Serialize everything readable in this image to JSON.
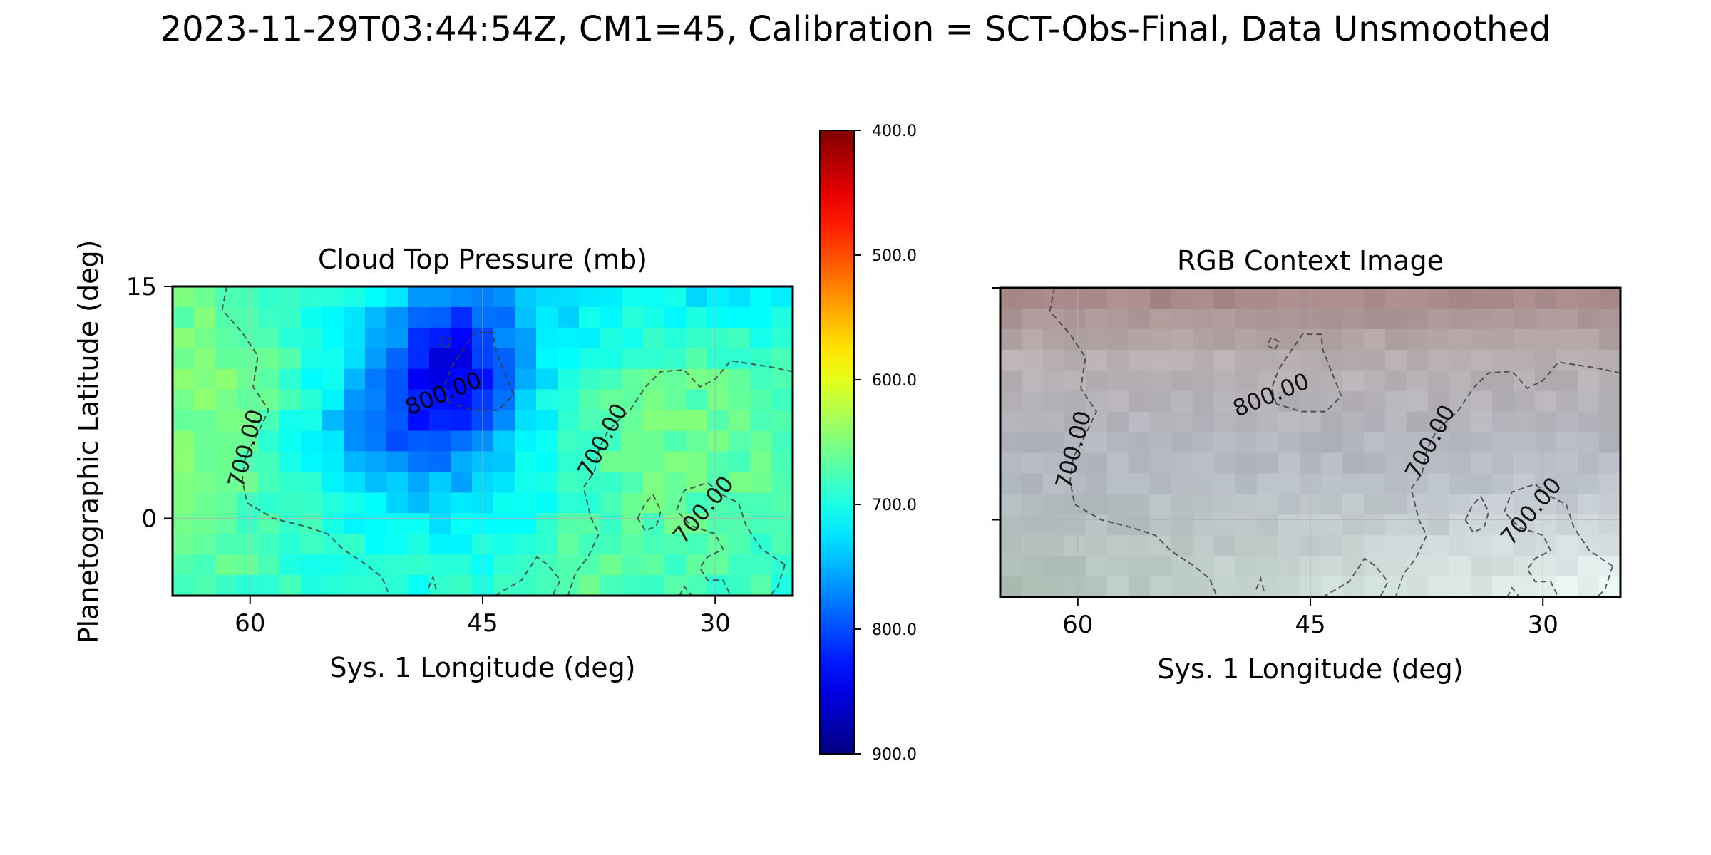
{
  "figure": {
    "suptitle": "2023-11-29T03:44:54Z, CM1=45, Calibration = SCT-Obs-Final, Data Unsmoothed"
  },
  "chart_data": [
    {
      "type": "heatmap",
      "title": "Cloud Top Pressure (mb)",
      "xlabel": "Sys. 1 Longitude (deg)",
      "ylabel": "Planetographic Latitude (deg)",
      "xlim": [
        65,
        25
      ],
      "ylim": [
        -5,
        15
      ],
      "x_ticks": [
        60,
        45,
        30
      ],
      "x_tick_labels": [
        "60",
        "45",
        "30"
      ],
      "y_ticks": [
        0,
        15
      ],
      "y_tick_labels": [
        "0",
        "15"
      ],
      "grid": true,
      "colormap": "jet_r",
      "value_range": [
        400,
        900
      ],
      "contour_levels": [
        700,
        800
      ],
      "contour_labels": [
        {
          "text": "700.00",
          "lon": 60.2,
          "lat": 4.5,
          "angle": -75
        },
        {
          "text": "800.00",
          "lon": 47.5,
          "lat": 8.0,
          "angle": -22
        },
        {
          "text": "700.00",
          "lon": 37.2,
          "lat": 5.0,
          "angle": -62
        },
        {
          "text": "700.00",
          "lon": 30.7,
          "lat": 0.5,
          "angle": -50
        }
      ],
      "blobs": [
        {
          "lon": 47,
          "lat": 9.5,
          "amp": 120,
          "slon": 3.2,
          "slat": 3.6
        },
        {
          "lon": 51.5,
          "lat": 5.5,
          "amp": 55,
          "slon": 3.5,
          "slat": 3.0
        },
        {
          "lon": 45,
          "lat": 3,
          "amp": 35,
          "slon": 6,
          "slat": 5
        },
        {
          "lon": 44,
          "lat": 13,
          "amp": 40,
          "slon": 6,
          "slat": 3
        },
        {
          "lon": 28,
          "lat": 14.5,
          "amp": 40,
          "slon": 6,
          "slat": 2
        },
        {
          "lon": 34,
          "lat": 5,
          "amp": -35,
          "slon": 7,
          "slat": 6
        },
        {
          "lon": 63,
          "lat": 7,
          "amp": -40,
          "slon": 4,
          "slat": 8
        },
        {
          "lon": 39,
          "lat": -3.5,
          "amp": -25,
          "slon": 3,
          "slat": 2
        }
      ]
    },
    {
      "type": "heatmap",
      "title": "RGB Context Image",
      "xlabel": "Sys. 1 Longitude (deg)",
      "xlim": [
        65,
        25
      ],
      "ylim": [
        -5,
        15
      ],
      "x_ticks": [
        60,
        45,
        30
      ],
      "x_tick_labels": [
        "60",
        "45",
        "30"
      ],
      "y_ticks": [
        0,
        15
      ],
      "grid": true,
      "contour_levels": [
        700,
        800
      ],
      "colors": {
        "top_band": "#a88a8a",
        "upper_mid": "#b7aeb0",
        "center": "#b4b8c2",
        "bottom_left": "#aebfb6",
        "bottom_right": "#e8f4f2"
      }
    }
  ],
  "colorbar": {
    "ticks": [
      400,
      500,
      600,
      700,
      800,
      900
    ],
    "tick_labels": [
      "400.0",
      "500.0",
      "600.0",
      "700.0",
      "800.0",
      "900.0"
    ],
    "range": [
      400,
      900
    ],
    "orientation": "vertical",
    "reversed": true
  }
}
